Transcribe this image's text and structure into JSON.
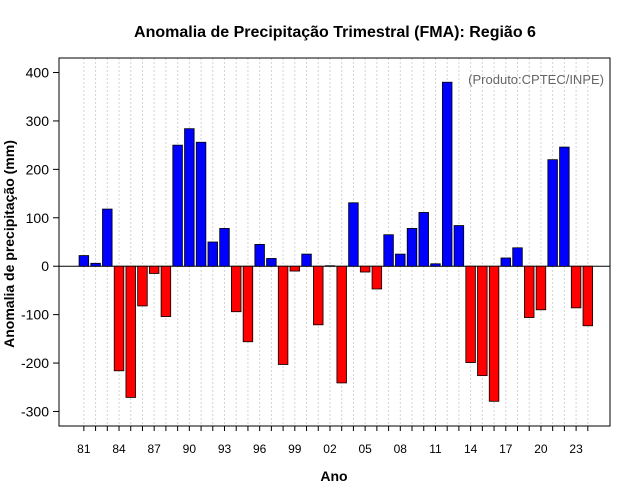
{
  "chart_data": {
    "type": "bar",
    "title": "Anomalia de Precipitação Trimestral (FMA): Região 6",
    "xlabel": "Ano",
    "ylabel": "Anomalia de precipitação (mm)",
    "annotation": "(Produto:CPTEC/INPE)",
    "ylim": [
      -330,
      430
    ],
    "yticks": [
      -300,
      -200,
      -100,
      0,
      100,
      200,
      300,
      400
    ],
    "xtick_labels": [
      "81",
      "84",
      "87",
      "90",
      "93",
      "96",
      "99",
      "02",
      "05",
      "08",
      "11",
      "14",
      "17",
      "20",
      "23"
    ],
    "xtick_every": 3,
    "grid": true,
    "positive_color": "#0000ff",
    "negative_color": "#ff0000",
    "categories": [
      "1981",
      "1982",
      "1983",
      "1984",
      "1985",
      "1986",
      "1987",
      "1988",
      "1989",
      "1990",
      "1991",
      "1992",
      "1993",
      "1994",
      "1995",
      "1996",
      "1997",
      "1998",
      "1999",
      "2000",
      "2001",
      "2002",
      "2003",
      "2004",
      "2005",
      "2006",
      "2007",
      "2008",
      "2009",
      "2010",
      "2011",
      "2012",
      "2013",
      "2014",
      "2015",
      "2016",
      "2017",
      "2018",
      "2019",
      "2020",
      "2021",
      "2022",
      "2023",
      "2024"
    ],
    "values": [
      22,
      6,
      118,
      -216,
      -271,
      -82,
      -15,
      -104,
      250,
      284,
      256,
      50,
      78,
      -94,
      -156,
      45,
      16,
      -203,
      -10,
      25,
      -121,
      1,
      -241,
      131,
      -12,
      -47,
      65,
      25,
      78,
      111,
      5,
      380,
      84,
      -199,
      -226,
      -279,
      17,
      38,
      -106,
      -90,
      220,
      246,
      -86,
      -123
    ]
  }
}
